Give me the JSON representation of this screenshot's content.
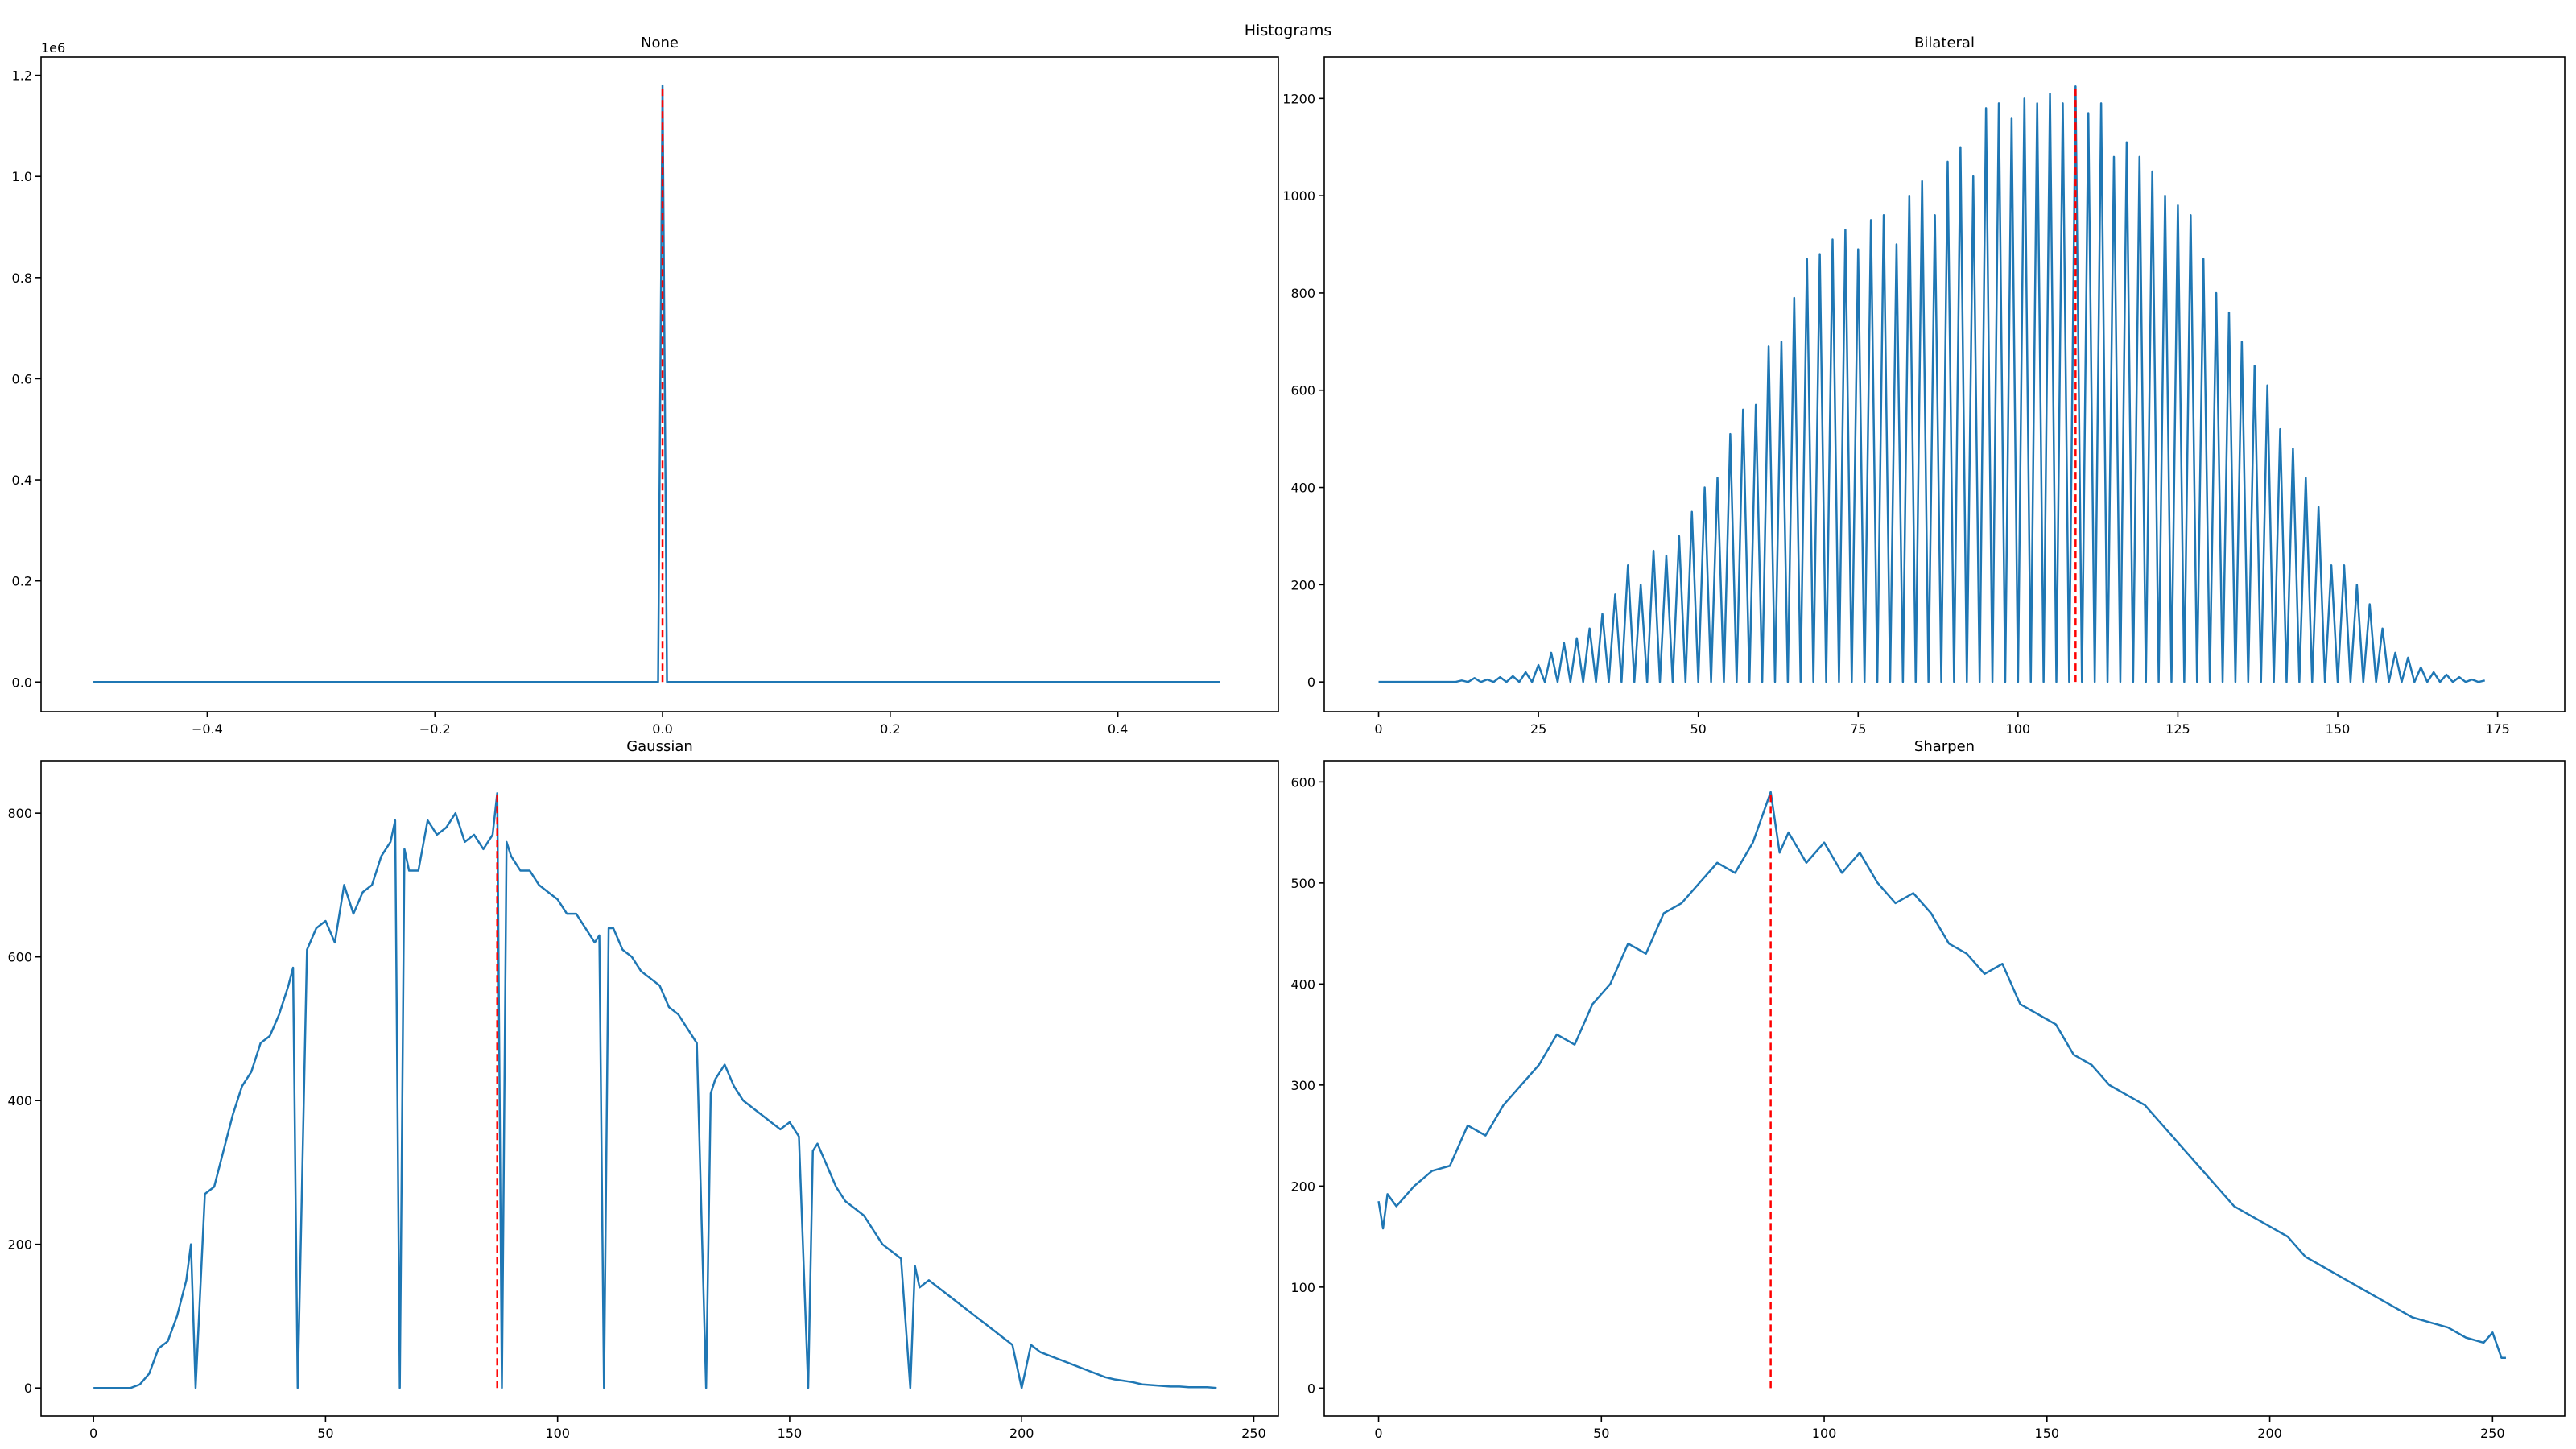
{
  "title": "Histograms",
  "chart_data": [
    {
      "type": "line",
      "title": "None",
      "x": [
        -0.5,
        -0.0039,
        0,
        0.0039,
        0.49
      ],
      "values": [
        0,
        0,
        1180000,
        0,
        0
      ],
      "color": "#1f77b4",
      "xlim": [
        -0.546,
        0.541
      ],
      "xticks": [
        {
          "value": -0.4,
          "label": "−0.4"
        },
        {
          "value": -0.2,
          "label": "−0.2"
        },
        {
          "value": 0,
          "label": "0.0"
        },
        {
          "value": 0.2,
          "label": "0.2"
        },
        {
          "value": 0.4,
          "label": "0.4"
        }
      ],
      "ylim": [
        -58500,
        1236000
      ],
      "yticks": [
        {
          "value": 0,
          "label": "0.0"
        },
        {
          "value": 200000,
          "label": "0.2"
        },
        {
          "value": 400000,
          "label": "0.4"
        },
        {
          "value": 600000,
          "label": "0.6"
        },
        {
          "value": 800000,
          "label": "0.8"
        },
        {
          "value": 1000000,
          "label": "1.0"
        },
        {
          "value": 1200000,
          "label": "1.2"
        }
      ],
      "y_offset_text": "1e6",
      "peak_line": {
        "x": 0,
        "y": 1180000,
        "color": "#ff0000"
      }
    },
    {
      "type": "line",
      "title": "Bilateral",
      "x": [
        0,
        12,
        13,
        14,
        15,
        16,
        17,
        18,
        19,
        20,
        21,
        22,
        23,
        24,
        25,
        26,
        27,
        28,
        29,
        30,
        31,
        32,
        33,
        34,
        35,
        36,
        37,
        38,
        39,
        40,
        41,
        42,
        43,
        44,
        45,
        46,
        47,
        48,
        49,
        50,
        51,
        52,
        53,
        54,
        55,
        56,
        57,
        58,
        59,
        60,
        61,
        62,
        63,
        64,
        65,
        66,
        67,
        68,
        69,
        70,
        71,
        72,
        73,
        74,
        75,
        76,
        77,
        78,
        79,
        80,
        81,
        82,
        83,
        84,
        85,
        86,
        87,
        88,
        89,
        90,
        91,
        92,
        93,
        94,
        95,
        96,
        97,
        98,
        99,
        100,
        101,
        102,
        103,
        104,
        105,
        106,
        107,
        108,
        109,
        110,
        111,
        112,
        113,
        114,
        115,
        116,
        117,
        118,
        119,
        120,
        121,
        122,
        123,
        124,
        125,
        126,
        127,
        128,
        129,
        130,
        131,
        132,
        133,
        134,
        135,
        136,
        137,
        138,
        139,
        140,
        141,
        142,
        143,
        144,
        145,
        146,
        147,
        148,
        149,
        150,
        151,
        152,
        153,
        154,
        155,
        156,
        157,
        158,
        159,
        160,
        161,
        162,
        163,
        164,
        165,
        166,
        167,
        168,
        169,
        170,
        171,
        172,
        173
      ],
      "values": [
        0,
        0,
        3,
        0,
        8,
        0,
        5,
        0,
        10,
        0,
        12,
        0,
        20,
        0,
        35,
        0,
        60,
        0,
        80,
        0,
        90,
        0,
        110,
        0,
        140,
        0,
        180,
        0,
        240,
        0,
        200,
        0,
        270,
        0,
        260,
        0,
        300,
        0,
        350,
        0,
        400,
        0,
        420,
        0,
        510,
        0,
        560,
        0,
        570,
        0,
        690,
        0,
        700,
        0,
        790,
        0,
        870,
        0,
        880,
        0,
        910,
        0,
        930,
        0,
        890,
        0,
        950,
        0,
        960,
        0,
        900,
        0,
        1000,
        0,
        1030,
        0,
        960,
        0,
        1070,
        0,
        1100,
        0,
        1040,
        0,
        1180,
        0,
        1190,
        0,
        1160,
        0,
        1200,
        0,
        1190,
        0,
        1210,
        0,
        1190,
        0,
        1225,
        0,
        1170,
        0,
        1190,
        0,
        1080,
        0,
        1110,
        0,
        1080,
        0,
        1050,
        0,
        1000,
        0,
        980,
        0,
        960,
        0,
        870,
        0,
        800,
        0,
        760,
        0,
        700,
        0,
        650,
        0,
        610,
        0,
        520,
        0,
        480,
        0,
        420,
        0,
        360,
        0,
        240,
        0,
        240,
        0,
        200,
        0,
        160,
        0,
        110,
        0,
        60,
        0,
        50,
        0,
        30,
        0,
        20,
        0,
        15,
        0,
        10,
        0,
        5,
        0,
        3
      ],
      "color": "#1f77b4",
      "xlim": [
        -8.5,
        185.5
      ],
      "xticks": [
        0,
        25,
        50,
        75,
        100,
        125,
        150,
        175
      ],
      "ylim": [
        -61,
        1285
      ],
      "yticks": [
        0,
        200,
        400,
        600,
        800,
        1000,
        1200
      ],
      "peak_line": {
        "x": 109,
        "y": 1225,
        "color": "#ff0000"
      }
    },
    {
      "type": "line",
      "title": "Gaussian",
      "x": [
        0,
        2,
        4,
        6,
        8,
        10,
        12,
        14,
        16,
        18,
        20,
        21,
        22,
        24,
        26,
        28,
        30,
        32,
        34,
        36,
        38,
        40,
        42,
        43,
        44,
        46,
        48,
        50,
        52,
        54,
        56,
        58,
        60,
        62,
        64,
        65,
        66,
        67,
        68,
        70,
        72,
        74,
        76,
        78,
        80,
        82,
        84,
        86,
        87,
        88,
        89,
        90,
        92,
        94,
        96,
        98,
        100,
        102,
        104,
        106,
        108,
        109,
        110,
        111,
        112,
        114,
        116,
        118,
        120,
        122,
        124,
        126,
        128,
        130,
        132,
        133,
        134,
        136,
        138,
        140,
        142,
        144,
        146,
        148,
        150,
        152,
        154,
        155,
        156,
        158,
        160,
        162,
        164,
        166,
        168,
        170,
        172,
        174,
        176,
        177,
        178,
        180,
        182,
        184,
        186,
        188,
        190,
        192,
        194,
        196,
        198,
        200,
        202,
        204,
        206,
        208,
        210,
        212,
        214,
        216,
        218,
        220,
        222,
        224,
        226,
        228,
        230,
        232,
        234,
        236,
        238,
        240,
        242
      ],
      "values": [
        0,
        0,
        0,
        0,
        0,
        5,
        20,
        55,
        65,
        100,
        150,
        200,
        0,
        270,
        280,
        330,
        380,
        420,
        440,
        480,
        490,
        520,
        560,
        585,
        0,
        610,
        640,
        650,
        620,
        700,
        660,
        690,
        700,
        740,
        760,
        790,
        0,
        750,
        720,
        720,
        790,
        770,
        780,
        800,
        760,
        770,
        750,
        770,
        828,
        0,
        760,
        740,
        720,
        720,
        700,
        690,
        680,
        660,
        660,
        640,
        620,
        630,
        0,
        640,
        640,
        610,
        600,
        580,
        570,
        560,
        530,
        520,
        500,
        480,
        0,
        410,
        430,
        450,
        420,
        400,
        390,
        380,
        370,
        360,
        370,
        350,
        0,
        330,
        340,
        310,
        280,
        260,
        250,
        240,
        220,
        200,
        190,
        180,
        0,
        170,
        140,
        150,
        140,
        130,
        120,
        110,
        100,
        90,
        80,
        70,
        60,
        0,
        60,
        50,
        45,
        40,
        35,
        30,
        25,
        20,
        15,
        12,
        10,
        8,
        5,
        4,
        3,
        2,
        2,
        1,
        1,
        1,
        0
      ],
      "color": "#1f77b4",
      "xlim": [
        -11.3,
        255.3
      ],
      "xticks": [
        0,
        50,
        100,
        150,
        200,
        250
      ],
      "ylim": [
        -39,
        873
      ],
      "yticks": [
        0,
        200,
        400,
        600,
        800
      ],
      "peak_line": {
        "x": 87,
        "y": 828,
        "color": "#ff0000"
      }
    },
    {
      "type": "line",
      "title": "Sharpen",
      "x": [
        0,
        1,
        2,
        4,
        8,
        12,
        16,
        20,
        24,
        28,
        32,
        36,
        40,
        44,
        48,
        52,
        56,
        60,
        64,
        68,
        72,
        76,
        80,
        84,
        88,
        90,
        92,
        96,
        100,
        104,
        108,
        112,
        116,
        120,
        124,
        128,
        132,
        136,
        140,
        144,
        148,
        152,
        156,
        160,
        164,
        168,
        172,
        176,
        180,
        184,
        188,
        192,
        196,
        200,
        204,
        208,
        212,
        216,
        220,
        224,
        228,
        232,
        236,
        240,
        244,
        248,
        250,
        252,
        253
      ],
      "values": [
        185,
        158,
        192,
        180,
        200,
        215,
        220,
        260,
        250,
        280,
        300,
        320,
        350,
        340,
        380,
        400,
        440,
        430,
        470,
        480,
        500,
        520,
        510,
        540,
        590,
        530,
        550,
        520,
        540,
        510,
        530,
        500,
        480,
        490,
        470,
        440,
        430,
        410,
        420,
        380,
        370,
        360,
        330,
        320,
        300,
        290,
        280,
        260,
        240,
        220,
        200,
        180,
        170,
        160,
        150,
        130,
        120,
        110,
        100,
        90,
        80,
        70,
        65,
        60,
        50,
        45,
        55,
        30,
        30
      ],
      "color": "#1f77b4",
      "xlim": [
        -12.2,
        266.2
      ],
      "xticks": [
        0,
        50,
        100,
        150,
        200,
        250
      ],
      "ylim": [
        -27.6,
        621
      ],
      "yticks": [
        0,
        100,
        200,
        300,
        400,
        500,
        600
      ],
      "peak_line": {
        "x": 88,
        "y": 590,
        "color": "#ff0000"
      }
    }
  ]
}
